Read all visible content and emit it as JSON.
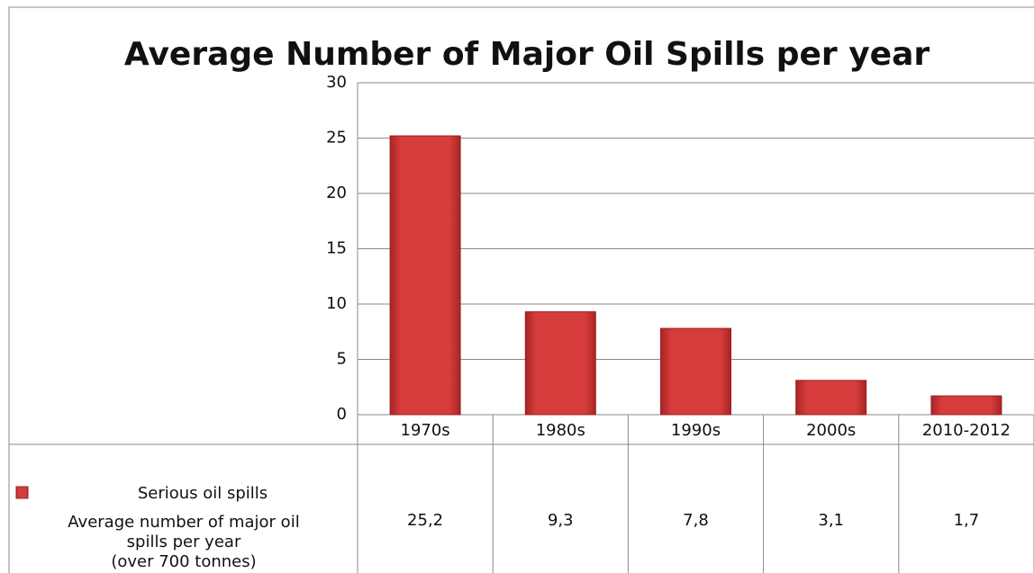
{
  "chart_data": {
    "type": "bar",
    "title": "Average Number of Major Oil Spills per year",
    "categories": [
      "1970s",
      "1980s",
      "1990s",
      "2000s",
      "2010-2012"
    ],
    "series": [
      {
        "name": "Serious oil spills",
        "color": "#d63c3c",
        "values": [
          25.2,
          9.3,
          7.8,
          3.1,
          1.7
        ],
        "value_labels": [
          "25,2",
          "9,3",
          "7,8",
          "3,1",
          "1,7"
        ]
      }
    ],
    "table_row_label": [
      "Average number of major oil",
      "spills per year",
      "(over 700 tonnes)"
    ],
    "ylim": [
      0,
      30
    ],
    "yticks": [
      0,
      5,
      10,
      15,
      20,
      25,
      30
    ],
    "grid": true
  }
}
